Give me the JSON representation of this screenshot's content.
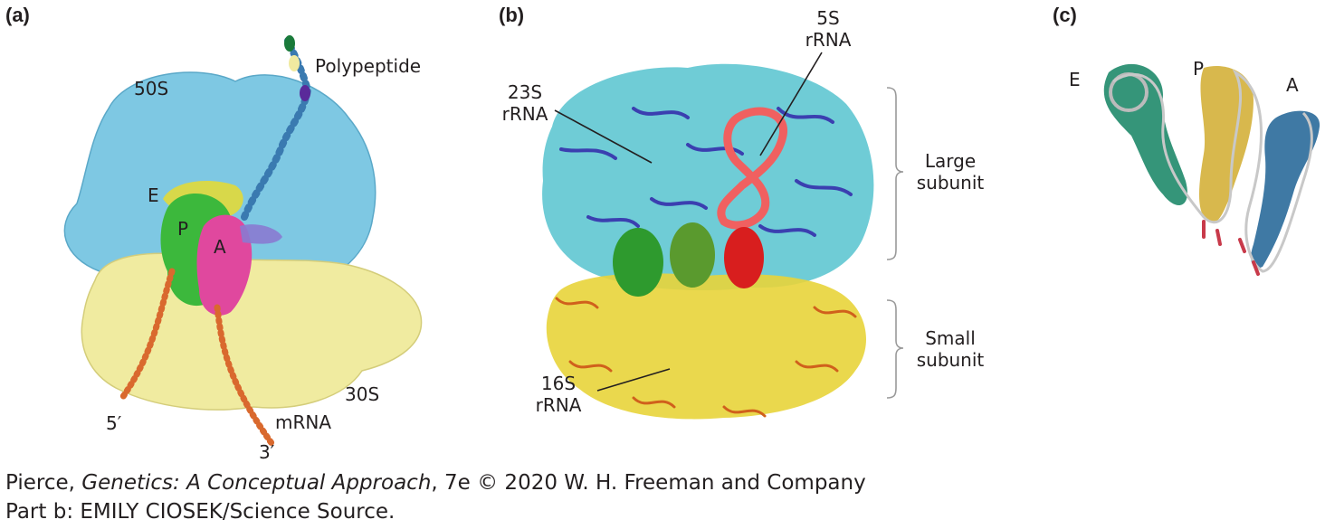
{
  "panels": {
    "a": {
      "letter": "(a)",
      "labels": {
        "large_subunit": "50S",
        "small_subunit": "30S",
        "polypeptide": "Polypeptide",
        "site_e": "E",
        "site_p": "P",
        "site_a": "A",
        "five_prime": "5′",
        "three_prime": "3′",
        "mrna": "mRNA"
      },
      "colors": {
        "large_subunit": "#7ec8e3",
        "small_subunit": "#f0eba0",
        "trna_p": "#3cb83c",
        "trna_a": "#e0489e",
        "trna_e": "#d8d84a",
        "mrna": "#d9692e"
      }
    },
    "b": {
      "letter": "(b)",
      "labels": {
        "rrna_5s_line1": "5S",
        "rrna_5s_line2": "rRNA",
        "rrna_23s_line1": "23S",
        "rrna_23s_line2": "rRNA",
        "rrna_16s_line1": "16S",
        "rrna_16s_line2": "rRNA",
        "large_line1": "Large",
        "large_line2": "subunit",
        "small_line1": "Small",
        "small_line2": "subunit"
      },
      "colors": {
        "rrna_23s": "#56c3cf",
        "proteins_large": "#3b3fb0",
        "rrna_5s": "#f06060",
        "rrna_16s": "#e8d43a",
        "proteins_small": "#d0601c",
        "trna_green": "#2e9a2e",
        "trna_red": "#d81e1e"
      }
    },
    "c": {
      "letter": "(c)",
      "labels": {
        "site_e": "E",
        "site_p": "P",
        "site_a": "A"
      },
      "colors": {
        "trna_e": "#1f8a6a",
        "trna_p": "#d4b03a",
        "trna_a": "#2a6a9a",
        "backbone": "#c8c8c8"
      }
    }
  },
  "credit": {
    "line1_prefix": "Pierce, ",
    "line1_title": "Genetics: A Conceptual Approach",
    "line1_suffix": ", 7e © 2020 W. H. Freeman and Company",
    "line2": "Part b: EMILY CIOSEK/Science Source."
  }
}
